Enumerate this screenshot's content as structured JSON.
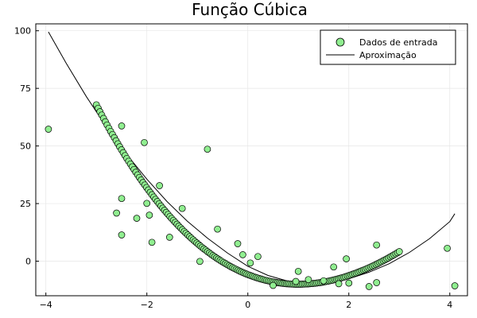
{
  "chart_data": {
    "type": "scatter",
    "title": "Função Cúbica",
    "xlabel": "",
    "ylabel": "",
    "xlim": [
      -4.2,
      4.35
    ],
    "ylim": [
      -15,
      103
    ],
    "xticks": [
      -4,
      -2,
      0,
      2,
      4
    ],
    "yticks": [
      0,
      25,
      50,
      75,
      100
    ],
    "xtick_labels": [
      "−4",
      "−2",
      "0",
      "2",
      "4"
    ],
    "ytick_labels": [
      "0",
      "25",
      "50",
      "75",
      "100"
    ],
    "grid": true,
    "legend": "top-right",
    "colors": {
      "points": "#90ee90",
      "point_stroke": "#000000",
      "line": "#000000",
      "grid": "#e6e6e6",
      "frame": "#000000"
    },
    "series": [
      {
        "name": "Dados de entrada",
        "kind": "scatter",
        "dense_x_range": [
          -3.0,
          3.0
        ],
        "dense_count": 170,
        "dense_curve": "y = (x - 1)^2 * (4.2 - x/4.5) - 10",
        "outliers": [
          [
            -3.95,
            57.3
          ],
          [
            -2.5,
            58.7
          ],
          [
            -2.05,
            51.5
          ],
          [
            -0.8,
            48.6
          ],
          [
            -2.6,
            20.9
          ],
          [
            -2.5,
            27.2
          ],
          [
            -2.5,
            11.4
          ],
          [
            -2.2,
            18.6
          ],
          [
            -2.0,
            25.1
          ],
          [
            -1.95,
            20.0
          ],
          [
            -1.9,
            8.2
          ],
          [
            -1.75,
            32.8
          ],
          [
            -1.55,
            10.4
          ],
          [
            -1.3,
            22.9
          ],
          [
            -0.95,
            -0.1
          ],
          [
            -0.6,
            13.9
          ],
          [
            -0.2,
            7.6
          ],
          [
            -0.1,
            2.8
          ],
          [
            0.05,
            -0.8
          ],
          [
            0.2,
            2.0
          ],
          [
            1.0,
            -4.4
          ],
          [
            1.2,
            -8.0
          ],
          [
            1.7,
            -2.5
          ],
          [
            1.95,
            1.0
          ],
          [
            2.4,
            -11.0
          ],
          [
            2.55,
            7.0
          ],
          [
            2.55,
            -9.3
          ],
          [
            3.95,
            5.6
          ],
          [
            4.1,
            -10.7
          ],
          [
            0.5,
            -10.5
          ],
          [
            0.95,
            -8.8
          ],
          [
            1.5,
            -8.5
          ],
          [
            1.8,
            -9.8
          ],
          [
            2.0,
            -9.5
          ]
        ]
      },
      {
        "name": "Aproximação",
        "kind": "line",
        "x": [
          -3.95,
          -3.6,
          -3.2,
          -2.8,
          -2.4,
          -2.0,
          -1.6,
          -1.2,
          -0.8,
          -0.4,
          0.0,
          0.4,
          0.8,
          1.2,
          1.6,
          2.0,
          2.4,
          2.8,
          3.2,
          3.6,
          4.0,
          4.1
        ],
        "y": [
          99.5,
          86.0,
          71.5,
          58.2,
          46.3,
          35.6,
          25.9,
          17.4,
          10.0,
          3.5,
          -2.2,
          -6.2,
          -8.7,
          -9.8,
          -9.3,
          -7.6,
          -4.8,
          -1.1,
          3.8,
          9.8,
          17.2,
          20.6
        ]
      }
    ]
  }
}
